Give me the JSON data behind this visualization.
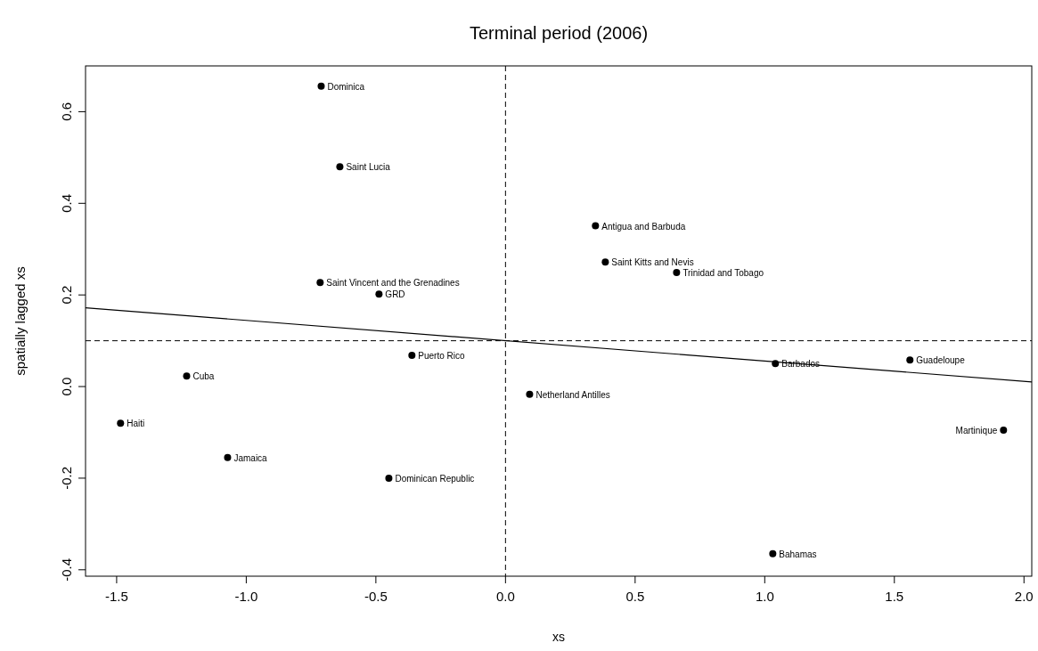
{
  "chart_data": {
    "type": "scatter",
    "title": "Terminal period (2006)",
    "xlabel": "xs",
    "ylabel": "spatially lagged xs",
    "xlim": [
      -1.62,
      2.03
    ],
    "ylim": [
      -0.414,
      0.7
    ],
    "xticks": [
      {
        "value": -1.5,
        "label": "-1.5"
      },
      {
        "value": -1,
        "label": "-1.0"
      },
      {
        "value": -0.5,
        "label": "-0.5"
      },
      {
        "value": 0,
        "label": "0.0"
      },
      {
        "value": 0.5,
        "label": "0.5"
      },
      {
        "value": 1,
        "label": "1.0"
      },
      {
        "value": 1.5,
        "label": "1.5"
      },
      {
        "value": 2,
        "label": "2.0"
      }
    ],
    "yticks": [
      -0.4,
      -0.2,
      {
        "value": 0,
        "label": "0.0"
      },
      0.2,
      0.4,
      0.6
    ],
    "grid": false,
    "marker": "circle",
    "series": [
      {
        "type": "scatter",
        "color": "#000000",
        "x": [
          -0.711,
          -0.639,
          0.347,
          0.385,
          0.66,
          -0.715,
          -0.488,
          -0.361,
          -1.23,
          0.093,
          1.041,
          1.56,
          -1.485,
          -1.072,
          -0.45,
          1.921,
          1.031
        ],
        "values": [
          0.656,
          0.48,
          0.351,
          0.272,
          0.249,
          0.227,
          0.202,
          0.068,
          0.023,
          -0.017,
          0.05,
          0.058,
          -0.08,
          -0.155,
          -0.2,
          -0.095,
          -0.365
        ]
      },
      {
        "type": "line",
        "color": "#000000",
        "line_style": "solid",
        "marker": "none",
        "x": [
          -1.62,
          2.03
        ],
        "values": [
          0.172,
          0.01
        ]
      }
    ],
    "ref_lines": [
      {
        "axis": "x",
        "value": 0,
        "line_style": "dashed"
      },
      {
        "axis": "y",
        "value": 0.1,
        "line_style": "dashed"
      }
    ],
    "annotations": [
      {
        "text": "Dominica",
        "x": -0.711,
        "y": 0.656
      },
      {
        "text": "Saint Lucia",
        "x": -0.639,
        "y": 0.48
      },
      {
        "text": "Antigua and Barbuda",
        "x": 0.347,
        "y": 0.351
      },
      {
        "text": "Saint Kitts and Nevis",
        "x": 0.385,
        "y": 0.272
      },
      {
        "text": "Trinidad and Tobago",
        "x": 0.66,
        "y": 0.249
      },
      {
        "text": "Saint Vincent and the Grenadines",
        "x": -0.715,
        "y": 0.227
      },
      {
        "text": "GRD",
        "x": -0.488,
        "y": 0.202
      },
      {
        "text": "Puerto Rico",
        "x": -0.361,
        "y": 0.068
      },
      {
        "text": "Cuba",
        "x": -1.23,
        "y": 0.023
      },
      {
        "text": "Netherland Antilles",
        "x": 0.093,
        "y": -0.017
      },
      {
        "text": "Barbados",
        "x": 1.041,
        "y": 0.05
      },
      {
        "text": "Guadeloupe",
        "x": 1.56,
        "y": 0.058
      },
      {
        "text": "Haiti",
        "x": -1.485,
        "y": -0.08
      },
      {
        "text": "Jamaica",
        "x": -1.072,
        "y": -0.155
      },
      {
        "text": "Dominican Republic",
        "x": -0.45,
        "y": -0.2
      },
      {
        "text": "Martinique",
        "x": 1.921,
        "y": -0.095
      },
      {
        "text": "Bahamas",
        "x": 1.031,
        "y": -0.365
      }
    ]
  }
}
